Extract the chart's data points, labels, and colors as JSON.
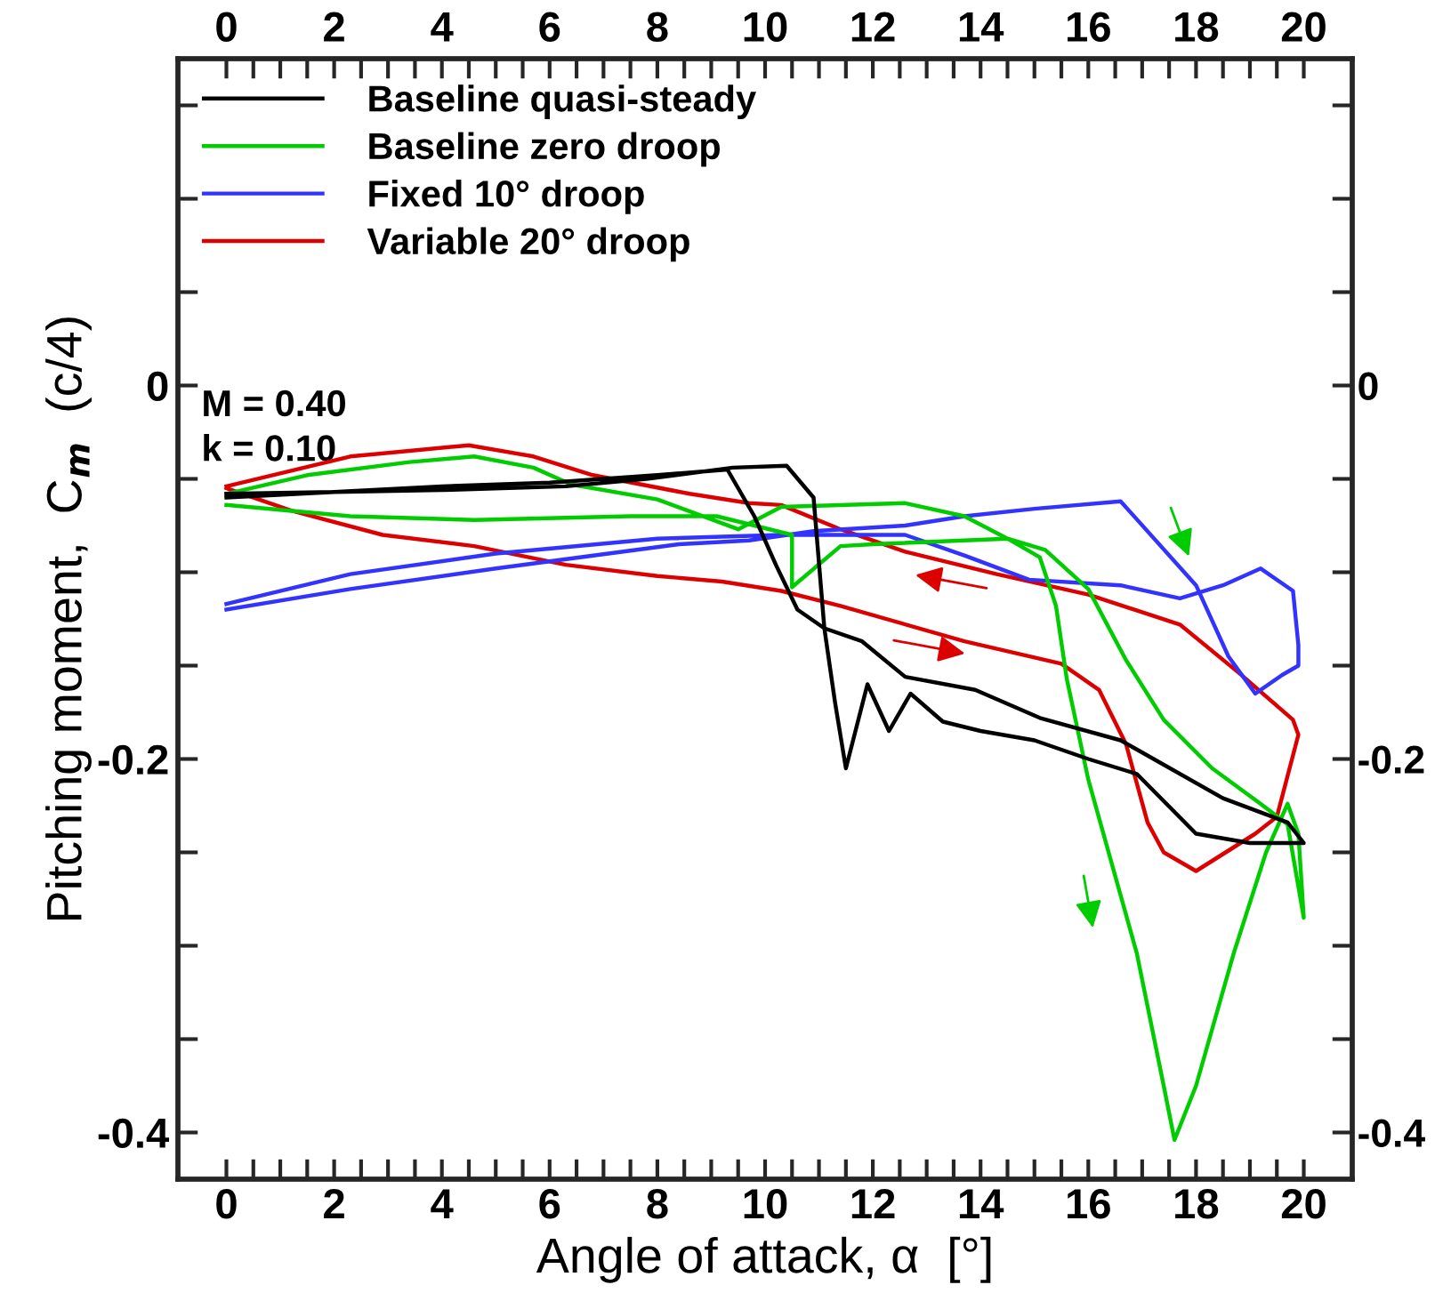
{
  "chart_data": {
    "type": "line",
    "xlabel": "Angle of attack, α  [°]",
    "ylabel": "Pitching moment,  C$_{m}$  (c/4)",
    "annotations": [
      "M = 0.40",
      "k = 0.10"
    ],
    "xlim": [
      -0.9,
      20.9
    ],
    "ylim": [
      -0.425,
      0.175
    ],
    "xticks": [
      0,
      {
        "value": 0.5,
        "label": null
      },
      {
        "value": 1,
        "label": null
      },
      {
        "value": 1.5,
        "label": null
      },
      2,
      {
        "value": 2.5,
        "label": null
      },
      {
        "value": 3,
        "label": null
      },
      {
        "value": 3.5,
        "label": null
      },
      4,
      {
        "value": 4.5,
        "label": null
      },
      {
        "value": 5,
        "label": null
      },
      {
        "value": 5.5,
        "label": null
      },
      6,
      {
        "value": 6.5,
        "label": null
      },
      {
        "value": 7,
        "label": null
      },
      {
        "value": 7.5,
        "label": null
      },
      8,
      {
        "value": 8.5,
        "label": null
      },
      {
        "value": 9,
        "label": null
      },
      {
        "value": 9.5,
        "label": null
      },
      10,
      {
        "value": 10.5,
        "label": null
      },
      {
        "value": 11,
        "label": null
      },
      {
        "value": 11.5,
        "label": null
      },
      12,
      {
        "value": 12.5,
        "label": null
      },
      {
        "value": 13,
        "label": null
      },
      {
        "value": 13.5,
        "label": null
      },
      14,
      {
        "value": 14.5,
        "label": null
      },
      {
        "value": 15,
        "label": null
      },
      {
        "value": 15.5,
        "label": null
      },
      16,
      {
        "value": 16.5,
        "label": null
      },
      {
        "value": 17,
        "label": null
      },
      {
        "value": 17.5,
        "label": null
      },
      18,
      {
        "value": 18.5,
        "label": null
      },
      {
        "value": 19,
        "label": null
      },
      {
        "value": 19.5,
        "label": null
      },
      20
    ],
    "x2ticks": [
      0,
      {
        "value": 0.5,
        "label": null
      },
      {
        "value": 1,
        "label": null
      },
      {
        "value": 1.5,
        "label": null
      },
      2,
      {
        "value": 2.5,
        "label": null
      },
      {
        "value": 3,
        "label": null
      },
      {
        "value": 3.5,
        "label": null
      },
      4,
      {
        "value": 4.5,
        "label": null
      },
      {
        "value": 5,
        "label": null
      },
      {
        "value": 5.5,
        "label": null
      },
      6,
      {
        "value": 6.5,
        "label": null
      },
      {
        "value": 7,
        "label": null
      },
      {
        "value": 7.5,
        "label": null
      },
      8,
      {
        "value": 8.5,
        "label": null
      },
      {
        "value": 9,
        "label": null
      },
      {
        "value": 9.5,
        "label": null
      },
      10,
      {
        "value": 10.5,
        "label": null
      },
      {
        "value": 11,
        "label": null
      },
      {
        "value": 11.5,
        "label": null
      },
      12,
      {
        "value": 12.5,
        "label": null
      },
      {
        "value": 13,
        "label": null
      },
      {
        "value": 13.5,
        "label": null
      },
      14,
      {
        "value": 14.5,
        "label": null
      },
      {
        "value": 15,
        "label": null
      },
      {
        "value": 15.5,
        "label": null
      },
      16,
      {
        "value": 16.5,
        "label": null
      },
      {
        "value": 17,
        "label": null
      },
      {
        "value": 17.5,
        "label": null
      },
      18,
      {
        "value": 18.5,
        "label": null
      },
      {
        "value": 19,
        "label": null
      },
      {
        "value": 19.5,
        "label": null
      },
      20
    ],
    "x2lim": [
      -0.9,
      20.9
    ],
    "y2lim": [
      -0.425,
      0.175
    ],
    "yticks": [
      {
        "value": -0.4,
        "label": "-0.4"
      },
      {
        "value": -0.35,
        "label": null
      },
      {
        "value": -0.3,
        "label": null
      },
      {
        "value": -0.25,
        "label": null
      },
      {
        "value": -0.2,
        "label": "-0.2"
      },
      {
        "value": -0.15,
        "label": null
      },
      {
        "value": -0.1,
        "label": null
      },
      {
        "value": -0.05,
        "label": null
      },
      0,
      {
        "value": 0.05,
        "label": null
      },
      {
        "value": 0.1,
        "label": null
      },
      {
        "value": 0.15,
        "label": null
      }
    ],
    "y2ticks": [
      {
        "value": -0.4,
        "label": "-0.4"
      },
      {
        "value": -0.35,
        "label": null
      },
      {
        "value": -0.3,
        "label": null
      },
      {
        "value": -0.25,
        "label": null
      },
      {
        "value": -0.2,
        "label": "-0.2"
      },
      {
        "value": -0.15,
        "label": null
      },
      {
        "value": -0.1,
        "label": null
      },
      {
        "value": -0.05,
        "label": null
      },
      0,
      {
        "value": 0.05,
        "label": null
      },
      {
        "value": 0.1,
        "label": null
      },
      {
        "value": 0.15,
        "label": null
      }
    ],
    "grid": false,
    "legend": "top left",
    "marker": "none",
    "line_style": "solid",
    "series": [
      {
        "name": "Baseline quasi-steady",
        "color": "#000000",
        "x": [
          0,
          2,
          4,
          6.3,
          7.8,
          9.4,
          10.4,
          10.9,
          11.1,
          11.3,
          11.5,
          11.9,
          12.3,
          12.7,
          13.3,
          14,
          15,
          16,
          16.9,
          18,
          19,
          20,
          19.7,
          18.5,
          16.6,
          15.1,
          13.9,
          12.6,
          11.8,
          11.1,
          10.6,
          10.2,
          9.8,
          9.3,
          8,
          6,
          4,
          2,
          0
        ],
        "values": [
          -0.058,
          -0.057,
          -0.056,
          -0.054,
          -0.05,
          -0.044,
          -0.043,
          -0.06,
          -0.13,
          -0.17,
          -0.205,
          -0.16,
          -0.185,
          -0.165,
          -0.18,
          -0.185,
          -0.19,
          -0.2,
          -0.208,
          -0.24,
          -0.245,
          -0.245,
          -0.234,
          -0.221,
          -0.19,
          -0.178,
          -0.163,
          -0.156,
          -0.137,
          -0.13,
          -0.12,
          -0.096,
          -0.07,
          -0.045,
          -0.048,
          -0.052,
          -0.054,
          -0.057,
          -0.06
        ]
      },
      {
        "name": "Baseline zero droop",
        "color": "#00cc00",
        "x": [
          0,
          1.5,
          3.4,
          4.6,
          5.7,
          6.4,
          8,
          9.5,
          10.3,
          12.6,
          13.7,
          14.5,
          15.1,
          15.4,
          15.6,
          16,
          16.9,
          17.4,
          17.6,
          18,
          18.7,
          19.3,
          19.7,
          19.9,
          20,
          19.7,
          19.2,
          18.3,
          17.4,
          16.7,
          16,
          15.2,
          14.5,
          12,
          11.4,
          10.5,
          10.5,
          9.1,
          7.5,
          4.6,
          2.3,
          0
        ],
        "values": [
          -0.058,
          -0.048,
          -0.041,
          -0.038,
          -0.044,
          -0.053,
          -0.061,
          -0.077,
          -0.065,
          -0.063,
          -0.07,
          -0.082,
          -0.092,
          -0.118,
          -0.157,
          -0.211,
          -0.304,
          -0.375,
          -0.404,
          -0.375,
          -0.304,
          -0.25,
          -0.224,
          -0.24,
          -0.285,
          -0.235,
          -0.224,
          -0.205,
          -0.179,
          -0.147,
          -0.109,
          -0.088,
          -0.082,
          -0.085,
          -0.086,
          -0.108,
          -0.08,
          -0.07,
          -0.07,
          -0.072,
          -0.07,
          -0.064
        ]
      },
      {
        "name": "Fixed 10° droop",
        "color": "#3333ff",
        "x": [
          0,
          2.3,
          5,
          8.4,
          9.7,
          10.9,
          12.6,
          13.7,
          15,
          16.6,
          18,
          18.6,
          19.1,
          19.6,
          19.9,
          19.9,
          19.8,
          19.2,
          18.5,
          17.7,
          16.6,
          14.9,
          13.7,
          12.6,
          10.9,
          10.3,
          8,
          5,
          2.3,
          0
        ],
        "values": [
          -0.12,
          -0.109,
          -0.098,
          -0.085,
          -0.083,
          -0.078,
          -0.075,
          -0.07,
          -0.066,
          -0.062,
          -0.107,
          -0.145,
          -0.165,
          -0.155,
          -0.15,
          -0.139,
          -0.11,
          -0.098,
          -0.107,
          -0.114,
          -0.107,
          -0.104,
          -0.091,
          -0.08,
          -0.08,
          -0.08,
          -0.082,
          -0.09,
          -0.101,
          -0.117
        ]
      },
      {
        "name": "Variable 20° droop",
        "color": "#dd0000",
        "x": [
          0,
          2.3,
          4.5,
          5.7,
          6.8,
          8.6,
          9.7,
          10.3,
          11.4,
          12.6,
          14.3,
          16,
          17.7,
          18.8,
          19.8,
          19.9,
          19.5,
          19.1,
          18,
          17.4,
          17.1,
          16.7,
          16.2,
          15.5,
          13.7,
          11.4,
          10.3,
          9.2,
          8,
          6.3,
          4.6,
          2.9,
          1.2,
          0
        ],
        "values": [
          -0.054,
          -0.038,
          -0.032,
          -0.038,
          -0.048,
          -0.058,
          -0.063,
          -0.064,
          -0.077,
          -0.089,
          -0.101,
          -0.112,
          -0.128,
          -0.154,
          -0.179,
          -0.187,
          -0.231,
          -0.24,
          -0.26,
          -0.25,
          -0.234,
          -0.192,
          -0.163,
          -0.149,
          -0.137,
          -0.118,
          -0.11,
          -0.105,
          -0.102,
          -0.096,
          -0.086,
          -0.08,
          -0.067,
          -0.055
        ]
      }
    ]
  }
}
